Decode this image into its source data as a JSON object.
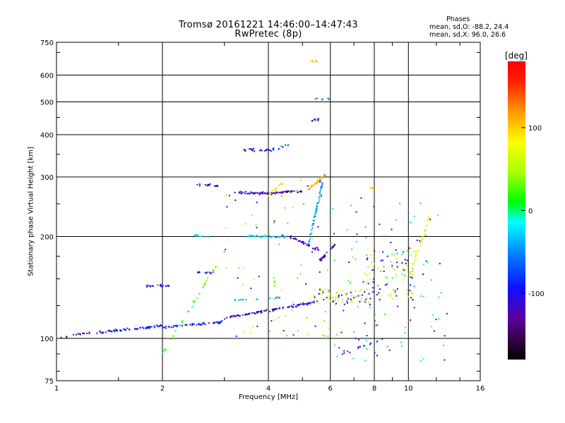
{
  "header": {
    "title_line1": "Tromsø 20161221 14:46:00–14:47:43",
    "title_line2": "RwPretec (8p)",
    "phases_heading": "Phases",
    "phases_o": "mean, sd,O: -88.2, 24.4",
    "phases_x": "mean, sd,X: 96.0, 26.6"
  },
  "colorbar": {
    "unit": "[deg]",
    "ticks": [
      {
        "value": 100,
        "label": "100"
      },
      {
        "value": 0,
        "label": "0"
      },
      {
        "value": -100,
        "label": "-100"
      }
    ],
    "range": [
      -180,
      180
    ]
  },
  "chart_data": {
    "type": "scatter",
    "title": "Tromsø 20161221 14:46:00–14:47:43",
    "subtitle": "RwPretec (8p)",
    "xlabel": "Frequency [MHz]",
    "ylabel": "Stationary phase Virtual Height [km]",
    "x_scale": "log",
    "y_scale": "log",
    "xlim": [
      1,
      16
    ],
    "ylim": [
      75,
      750
    ],
    "xticks": [
      1,
      2,
      4,
      6,
      8,
      10,
      16
    ],
    "xtick_labels": [
      "1",
      "2",
      "4",
      "6",
      "8",
      "10",
      "16"
    ],
    "yticks": [
      75,
      100,
      200,
      300,
      400,
      500,
      600,
      750
    ],
    "ytick_labels": [
      "75",
      "100",
      "200",
      "300",
      "400",
      "500",
      "600",
      "750"
    ],
    "color_variable": "phase [deg]",
    "grid": true,
    "clusters": [
      {
        "f_start": 1.0,
        "f_end": 1.3,
        "h_start": 100,
        "h_end": 105,
        "phase": -130,
        "count": 14
      },
      {
        "f_start": 1.3,
        "f_end": 2.0,
        "h_start": 104,
        "h_end": 109,
        "phase": -100,
        "count": 60
      },
      {
        "f_start": 2.0,
        "f_end": 3.0,
        "h_start": 108,
        "h_end": 112,
        "phase": -90,
        "count": 55
      },
      {
        "f_start": 3.0,
        "f_end": 4.2,
        "h_start": 115,
        "h_end": 122,
        "phase": -120,
        "count": 55
      },
      {
        "f_start": 4.2,
        "f_end": 5.4,
        "h_start": 122,
        "h_end": 128,
        "phase": -110,
        "count": 40
      },
      {
        "f_start": 5.4,
        "f_end": 7.8,
        "h_start": 125,
        "h_end": 140,
        "phase": 50,
        "count": 70
      },
      {
        "f_start": 7.5,
        "f_end": 10.5,
        "h_start": 130,
        "h_end": 185,
        "phase": 60,
        "count": 90
      },
      {
        "f_start": 1.8,
        "f_end": 2.1,
        "h_start": 143,
        "h_end": 143,
        "phase": -100,
        "count": 22
      },
      {
        "f_start": 3.2,
        "f_end": 4.4,
        "h_start": 130,
        "h_end": 132,
        "phase": -40,
        "count": 18
      },
      {
        "f_start": 2.5,
        "f_end": 2.8,
        "h_start": 157,
        "h_end": 157,
        "phase": -100,
        "count": 12
      },
      {
        "f_start": 2.45,
        "f_end": 2.7,
        "h_start": 202,
        "h_end": 200,
        "phase": -20,
        "count": 12
      },
      {
        "f_start": 3.5,
        "f_end": 4.6,
        "h_start": 200,
        "h_end": 200,
        "phase": -30,
        "count": 45
      },
      {
        "f_start": 4.6,
        "f_end": 5.6,
        "h_start": 200,
        "h_end": 182,
        "phase": -120,
        "count": 35
      },
      {
        "f_start": 5.2,
        "f_end": 5.7,
        "h_start": 190,
        "h_end": 290,
        "phase": -40,
        "count": 60
      },
      {
        "f_start": 5.6,
        "f_end": 6.2,
        "h_start": 170,
        "h_end": 190,
        "phase": -130,
        "count": 25
      },
      {
        "f_start": 2.5,
        "f_end": 2.9,
        "h_start": 285,
        "h_end": 283,
        "phase": -110,
        "count": 16
      },
      {
        "f_start": 3.2,
        "f_end": 4.2,
        "h_start": 270,
        "h_end": 268,
        "phase": -110,
        "count": 45
      },
      {
        "f_start": 4.2,
        "f_end": 5.0,
        "h_start": 270,
        "h_end": 272,
        "phase": -130,
        "count": 30
      },
      {
        "f_start": 4.0,
        "f_end": 4.4,
        "h_start": 265,
        "h_end": 290,
        "phase": 90,
        "count": 20
      },
      {
        "f_start": 5.2,
        "f_end": 5.8,
        "h_start": 275,
        "h_end": 305,
        "phase": 100,
        "count": 35
      },
      {
        "f_start": 3.4,
        "f_end": 4.1,
        "h_start": 360,
        "h_end": 360,
        "phase": -110,
        "count": 20
      },
      {
        "f_start": 4.1,
        "f_end": 4.6,
        "h_start": 360,
        "h_end": 375,
        "phase": -60,
        "count": 12
      },
      {
        "f_start": 5.3,
        "f_end": 5.6,
        "h_start": 440,
        "h_end": 445,
        "phase": -120,
        "count": 8
      },
      {
        "f_start": 5.4,
        "f_end": 6.0,
        "h_start": 510,
        "h_end": 510,
        "phase": -60,
        "count": 7
      },
      {
        "f_start": 5.0,
        "f_end": 5.5,
        "h_start": 670,
        "h_end": 655,
        "phase": 100,
        "count": 8
      },
      {
        "f_start": 7.8,
        "f_end": 8.0,
        "h_start": 278,
        "h_end": 278,
        "phase": 110,
        "count": 5
      },
      {
        "f_start": 3.0,
        "f_end": 6.0,
        "h_start": 100,
        "h_end": 300,
        "phase": 40,
        "count": 80
      },
      {
        "f_start": 6.0,
        "f_end": 13.0,
        "h_start": 85,
        "h_end": 260,
        "phase": 0,
        "count": 110
      },
      {
        "f_start": 2.0,
        "f_end": 3.0,
        "h_start": 90,
        "h_end": 180,
        "phase": 20,
        "count": 35
      },
      {
        "f_start": 10.0,
        "f_end": 11.5,
        "h_start": 150,
        "h_end": 230,
        "phase": 80,
        "count": 40
      },
      {
        "f_start": 6.5,
        "f_end": 8.5,
        "h_start": 90,
        "h_end": 100,
        "phase": -120,
        "count": 12
      }
    ]
  }
}
